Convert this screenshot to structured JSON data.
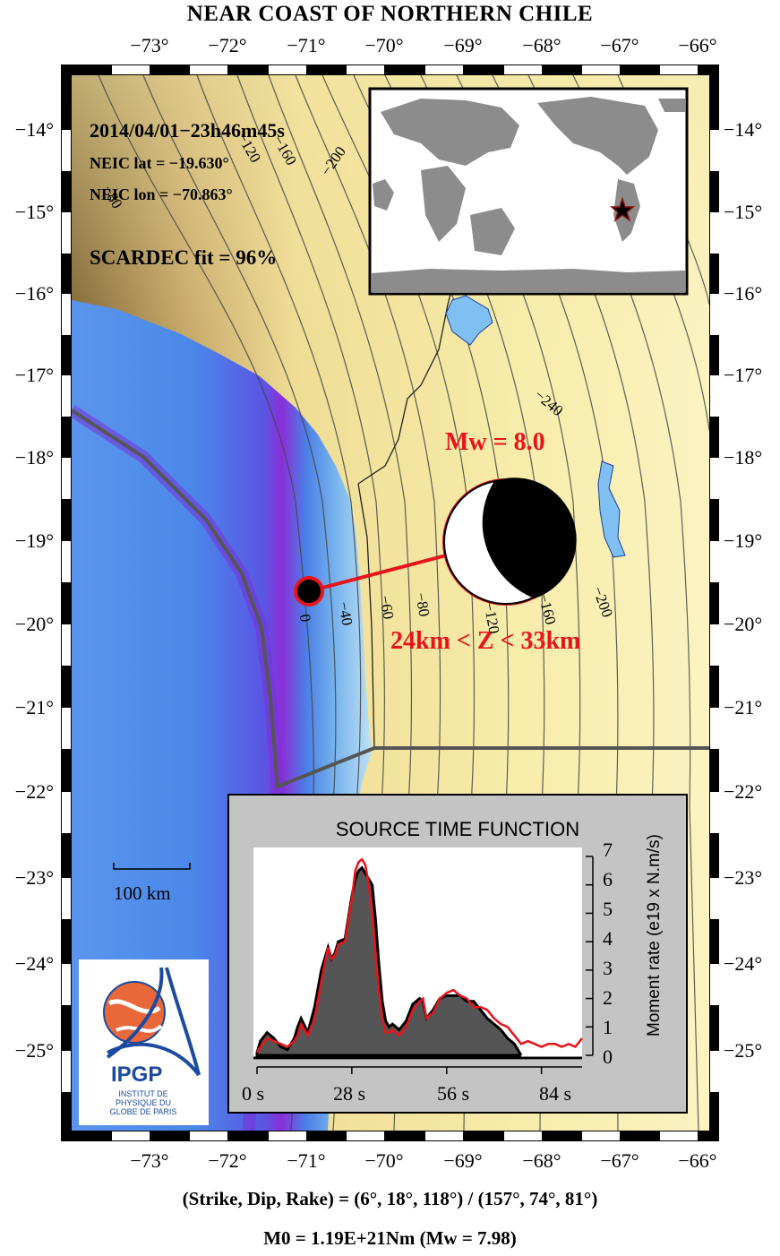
{
  "title": "NEAR COAST OF NORTHERN CHILE",
  "lon_ticks": [
    "−73°",
    "−72°",
    "−71°",
    "−70°",
    "−69°",
    "−68°",
    "−67°",
    "−66°"
  ],
  "lat_ticks": [
    "−14°",
    "−15°",
    "−16°",
    "−17°",
    "−18°",
    "−19°",
    "−20°",
    "−21°",
    "−22°",
    "−23°",
    "−24°",
    "−25°"
  ],
  "event": {
    "datetime": "2014/04/01−23h46m45s",
    "lat_text": "NEIC lat  = −19.630°",
    "lon_text": "NEIC lon = −70.863°",
    "fit_text": "SCARDEC fit = 96%"
  },
  "magnitude_label": "Mw = 8.0",
  "depth_label": "24km < Z <  33km",
  "contour_labels": [
    "0",
    "−40",
    "−60",
    "−80",
    "−120",
    "−160",
    "−200",
    "−240",
    "−80",
    "−120",
    "−160",
    "−200"
  ],
  "scale_bar_label": "100 km",
  "logo": {
    "text_big": "IPGP",
    "text_small": "INSTITUT DE PHYSIQUE DU GLOBE DE PARIS"
  },
  "stf": {
    "title": "SOURCE TIME FUNCTION",
    "ylabel": "Moment rate (e19 x N.m/s)",
    "x_ticks": [
      "0 s",
      "28 s",
      "56 s",
      "84 s"
    ],
    "y_ticks": [
      "0",
      "1",
      "2",
      "3",
      "4",
      "5",
      "6",
      "7"
    ]
  },
  "footer": {
    "planes": "(Strike, Dip, Rake) = (6°, 18°, 118°) / (157°, 74°, 81°)",
    "moment": "M0 = 1.19E+21Nm  (Mw = 7.98)"
  },
  "colors": {
    "quake_red": "#e8141b",
    "ocean_deep": "#7a2fd8",
    "ocean_mid": "#3f7fe6",
    "ocean_shallow": "#a8d4f2",
    "land_low": "#f6ec9d",
    "land_high": "#8a6d3b",
    "stf_fill": "#555555"
  },
  "chart_data": {
    "type": "area",
    "title": "SOURCE TIME FUNCTION",
    "xlabel": "",
    "ylabel": "Moment rate (e19 x N.m/s)",
    "xlim": [
      0,
      96
    ],
    "ylim": [
      0,
      7
    ],
    "x_ticks": [
      0,
      28,
      56,
      84
    ],
    "y_ticks": [
      0,
      1,
      2,
      3,
      4,
      5,
      6,
      7
    ],
    "series": [
      {
        "x": [
          0,
          1,
          3,
          5,
          7,
          9,
          11,
          12,
          13,
          15,
          17,
          19,
          21,
          22,
          23,
          24,
          26,
          28,
          29,
          30,
          31,
          32,
          33,
          34,
          35,
          36,
          37,
          38,
          39,
          40,
          41,
          42,
          44,
          46,
          48,
          49,
          50,
          52,
          54,
          56,
          58,
          60,
          62,
          64,
          66,
          68,
          70,
          72,
          74,
          76,
          77,
          78
        ],
        "values": [
          0.1,
          0.5,
          0.8,
          0.6,
          0.3,
          0.2,
          0.6,
          1.0,
          1.3,
          0.8,
          1.7,
          3.0,
          3.8,
          3.4,
          3.6,
          4.0,
          4.1,
          5.6,
          6.2,
          6.5,
          6.6,
          6.4,
          6.2,
          6.0,
          4.8,
          3.2,
          1.9,
          1.2,
          1.0,
          1.1,
          1.0,
          0.9,
          1.2,
          1.8,
          2.0,
          1.9,
          1.3,
          1.6,
          2.0,
          2.1,
          2.1,
          2.1,
          1.9,
          1.9,
          1.6,
          1.3,
          1.1,
          0.9,
          0.6,
          0.4,
          0.2,
          0
        ]
      },
      {
        "x": [
          0,
          1,
          3,
          5,
          7,
          9,
          11,
          12,
          13,
          15,
          17,
          19,
          21,
          22,
          23,
          24,
          26,
          28,
          29,
          30,
          31,
          32,
          33,
          34,
          35,
          36,
          37,
          38,
          39,
          40,
          41,
          42,
          44,
          46,
          48,
          49,
          50,
          52,
          54,
          56,
          58,
          60,
          62,
          64,
          66,
          68,
          70,
          72,
          74,
          76,
          78,
          80,
          82,
          84,
          86,
          88,
          90,
          92,
          94,
          96
        ],
        "values": [
          0.1,
          0.3,
          0.6,
          0.5,
          0.4,
          0.3,
          0.5,
          0.7,
          1.1,
          0.7,
          1.3,
          2.6,
          3.8,
          3.4,
          3.5,
          3.9,
          4.0,
          5.5,
          6.5,
          6.8,
          6.9,
          6.7,
          6.0,
          5.0,
          3.6,
          2.3,
          1.3,
          0.8,
          0.8,
          0.9,
          0.8,
          0.7,
          1.0,
          1.6,
          1.9,
          2.0,
          1.3,
          1.5,
          2.0,
          2.2,
          2.3,
          2.1,
          2.0,
          1.7,
          1.7,
          1.6,
          1.3,
          1.1,
          1.0,
          0.7,
          0.4,
          0.5,
          0.4,
          0.3,
          0.4,
          0.4,
          0.3,
          0.4,
          0.3,
          0.6
        ]
      }
    ]
  }
}
